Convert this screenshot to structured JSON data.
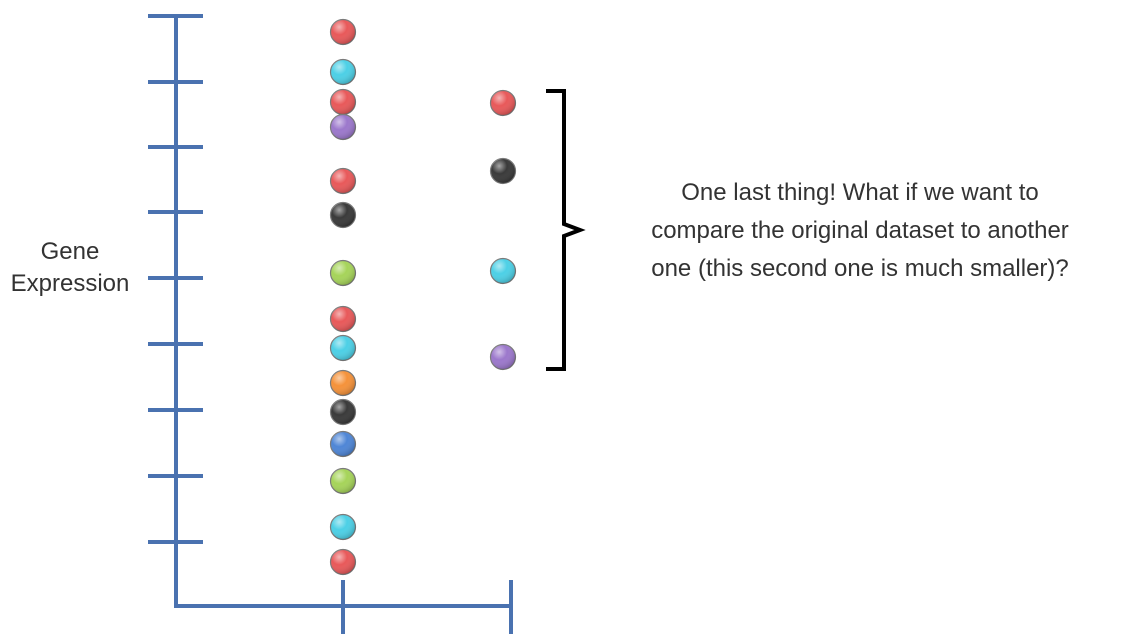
{
  "y_axis_label": [
    "Gene",
    "Expression"
  ],
  "annotation": [
    "One last thing! What if we want to",
    "compare the original dataset to another",
    "one (this second one is much smaller)?"
  ],
  "colors": {
    "axis": "#4a72b0",
    "red": "#e8595a",
    "cyan": "#4dd0e6",
    "purple": "#9c78cc",
    "black": "#3a3a3a",
    "green": "#a6d45a",
    "orange": "#f5923a",
    "blue": "#4f86d6",
    "bracket": "#000000"
  },
  "datasets": [
    {
      "points": [
        "red",
        "cyan",
        "red",
        "purple",
        "red",
        "black",
        "green",
        "red",
        "cyan",
        "orange",
        "black",
        "blue",
        "green",
        "cyan",
        "red"
      ]
    },
    {
      "points": [
        "red",
        "black",
        "cyan",
        "purple"
      ]
    }
  ]
}
